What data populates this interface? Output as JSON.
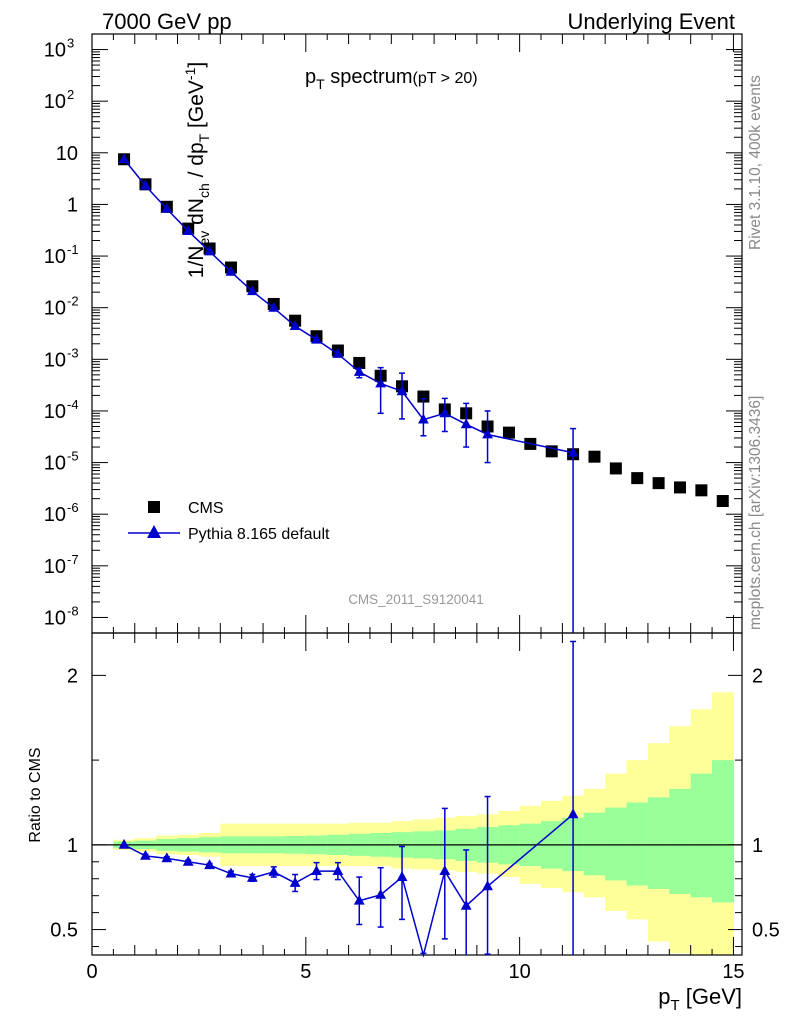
{
  "header": {
    "left": "7000 GeV pp",
    "right": "Underlying Event"
  },
  "side_text": {
    "rivet": "Rivet 3.1.10,  400k events",
    "mcplots": "mcplots.cern.ch [arXiv:1306.3436]"
  },
  "colors": {
    "mc": "#0000cc",
    "data": "#000000",
    "band_inner": "#99ff99",
    "band_outer": "#ffff99"
  },
  "chart_data": [
    {
      "type": "scatter",
      "title": "p_T spectrum",
      "title_main": "p",
      "title_sub": "T",
      "title_rest": " spectrum",
      "title_note": "(pT > 20)",
      "analysis_id": "CMS_2011_S9120041",
      "ylabel": "1/N_ev dN_ch / dp_T [GeV^-1]",
      "ylabel_parts": {
        "a": "1/N",
        "a_sub": "ev",
        "b": " dN",
        "b_sub": "ch",
        "c": " / dp",
        "c_sub": "T",
        "d": " [GeV",
        "d_sup": "-1",
        "e": "]"
      },
      "yscale": "log",
      "ylim": [
        5e-09,
        2000
      ],
      "xlim": [
        0,
        15.2
      ],
      "y_ticks": [
        {
          "value": 1e-08,
          "base": "10",
          "exp": "-8"
        },
        {
          "value": 1e-07,
          "base": "10",
          "exp": "-7"
        },
        {
          "value": 1e-06,
          "base": "10",
          "exp": "-6"
        },
        {
          "value": 1e-05,
          "base": "10",
          "exp": "-5"
        },
        {
          "value": 0.0001,
          "base": "10",
          "exp": "-4"
        },
        {
          "value": 0.001,
          "base": "10",
          "exp": "-3"
        },
        {
          "value": 0.01,
          "base": "10",
          "exp": "-2"
        },
        {
          "value": 0.1,
          "base": "10",
          "exp": "-1"
        },
        {
          "value": 1,
          "base": "1",
          "exp": ""
        },
        {
          "value": 10,
          "base": "10",
          "exp": ""
        },
        {
          "value": 100,
          "base": "10",
          "exp": "2"
        },
        {
          "value": 1000,
          "base": "10",
          "exp": "3"
        }
      ],
      "legend_position": "lower-left",
      "series": [
        {
          "name": "CMS",
          "marker": "square",
          "x": [
            0.75,
            1.25,
            1.75,
            2.25,
            2.75,
            3.25,
            3.75,
            4.25,
            4.75,
            5.25,
            5.75,
            6.25,
            6.75,
            7.25,
            7.75,
            8.25,
            8.75,
            9.25,
            9.75,
            10.25,
            10.75,
            11.25,
            11.75,
            12.25,
            12.75,
            13.25,
            13.75,
            14.25,
            14.75
          ],
          "y": [
            7.5,
            2.45,
            0.9,
            0.34,
            0.14,
            0.06,
            0.026,
            0.0118,
            0.0056,
            0.0028,
            0.00148,
            0.00085,
            0.00048,
            0.0003,
            0.00019,
            0.000107,
            9e-05,
            5e-05,
            3.8e-05,
            2.3e-05,
            1.65e-05,
            1.45e-05,
            1.3e-05,
            7.7e-06,
            5e-06,
            4e-06,
            3.3e-06,
            2.9e-06,
            1.8e-06
          ]
        },
        {
          "name": "Pythia 8.165 default",
          "marker": "triangle",
          "x": [
            0.75,
            1.25,
            1.75,
            2.25,
            2.75,
            3.25,
            3.75,
            4.25,
            4.75,
            5.25,
            5.75,
            6.25,
            6.75,
            7.25,
            7.75,
            8.25,
            8.75,
            9.25,
            11.25
          ],
          "y": [
            7.5,
            2.3,
            0.82,
            0.305,
            0.123,
            0.0495,
            0.0208,
            0.0099,
            0.0044,
            0.0024,
            0.00127,
            0.00057,
            0.00034,
            0.00024,
            6.8e-05,
            9e-05,
            5.5e-05,
            3.5e-05,
            1.55e-05
          ],
          "err_lo": [
            0,
            0,
            0,
            0,
            0,
            0,
            0,
            0,
            0,
            0,
            0,
            0.00013,
            0.00025,
            0.00017,
            3.5e-05,
            5e-05,
            3.5e-05,
            2.5e-05,
            1.55e-05
          ],
          "err_hi": [
            0,
            0,
            0,
            0,
            0,
            0,
            0,
            0,
            0,
            0,
            0,
            0.0001,
            0.00035,
            0.0003,
            0.000105,
            8.5e-05,
            8.5e-05,
            6.5e-05,
            3e-05
          ]
        }
      ]
    },
    {
      "type": "scatter",
      "title": "Ratio to CMS",
      "ylabel": "Ratio to CMS",
      "xlabel": "p_T [GeV]",
      "xlabel_main": "p",
      "xlabel_sub": "T",
      "xlabel_rest": " [GeV]",
      "xlim": [
        0,
        15.2
      ],
      "ylim": [
        0.35,
        2.25
      ],
      "y_ticks": [
        {
          "value": 0.5,
          "label": "0.5"
        },
        {
          "value": 1,
          "label": "1"
        },
        {
          "value": 2,
          "label": "2"
        }
      ],
      "x_ticks": [
        {
          "value": 0,
          "label": "0"
        },
        {
          "value": 5,
          "label": "5"
        },
        {
          "value": 10,
          "label": "10"
        },
        {
          "value": 15,
          "label": "15"
        }
      ],
      "bands": {
        "edges": [
          0.5,
          1,
          1.5,
          2,
          2.5,
          3,
          3.5,
          4,
          4.5,
          5,
          5.5,
          6,
          6.5,
          7,
          7.5,
          8,
          8.5,
          9,
          9.5,
          10,
          10.5,
          11,
          11.5,
          12,
          12.5,
          13,
          13.5,
          14,
          14.5,
          15
        ],
        "inner_lo": [
          0.98,
          0.975,
          0.965,
          0.96,
          0.955,
          0.95,
          0.95,
          0.95,
          0.948,
          0.945,
          0.94,
          0.935,
          0.93,
          0.925,
          0.92,
          0.915,
          0.905,
          0.895,
          0.885,
          0.875,
          0.86,
          0.845,
          0.82,
          0.79,
          0.76,
          0.74,
          0.71,
          0.69,
          0.66
        ],
        "inner_hi": [
          1.02,
          1.025,
          1.035,
          1.04,
          1.045,
          1.05,
          1.05,
          1.05,
          1.052,
          1.055,
          1.06,
          1.065,
          1.07,
          1.075,
          1.08,
          1.085,
          1.095,
          1.105,
          1.115,
          1.125,
          1.14,
          1.16,
          1.19,
          1.22,
          1.25,
          1.28,
          1.33,
          1.42,
          1.5
        ],
        "outer_lo": [
          0.97,
          0.96,
          0.945,
          0.94,
          0.93,
          0.875,
          0.875,
          0.875,
          0.875,
          0.875,
          0.875,
          0.875,
          0.875,
          0.86,
          0.855,
          0.85,
          0.84,
          0.83,
          0.81,
          0.77,
          0.745,
          0.72,
          0.69,
          0.61,
          0.56,
          0.43,
          0.36,
          0.3,
          0.3
        ],
        "outer_hi": [
          1.03,
          1.04,
          1.055,
          1.06,
          1.07,
          1.125,
          1.125,
          1.125,
          1.125,
          1.125,
          1.125,
          1.13,
          1.13,
          1.14,
          1.15,
          1.16,
          1.17,
          1.18,
          1.2,
          1.23,
          1.26,
          1.29,
          1.33,
          1.42,
          1.5,
          1.6,
          1.7,
          1.8,
          1.9
        ]
      },
      "series": [
        {
          "name": "Pythia 8.165 default",
          "marker": "triangle",
          "x": [
            0.75,
            1.25,
            1.75,
            2.25,
            2.75,
            3.25,
            3.75,
            4.25,
            4.75,
            5.25,
            5.75,
            6.25,
            6.75,
            7.25,
            7.75,
            8.25,
            8.75,
            9.25,
            11.25
          ],
          "y": [
            1.0,
            0.935,
            0.92,
            0.9,
            0.88,
            0.83,
            0.805,
            0.84,
            0.775,
            0.845,
            0.845,
            0.67,
            0.705,
            0.81,
            0.31,
            0.845,
            0.64,
            0.755,
            1.18
          ],
          "err_lo": [
            0,
            0.01,
            0.01,
            0.01,
            0.01,
            0.015,
            0.02,
            0.03,
            0.05,
            0.05,
            0.05,
            0.14,
            0.19,
            0.25,
            0.2,
            0.4,
            0.3,
            0.4,
            1.0
          ],
          "err_hi": [
            0,
            0.01,
            0.01,
            0.01,
            0.01,
            0.015,
            0.02,
            0.03,
            0.05,
            0.05,
            0.05,
            0.14,
            0.16,
            0.18,
            0.05,
            0.37,
            0.33,
            0.53,
            1.02
          ]
        }
      ]
    }
  ]
}
